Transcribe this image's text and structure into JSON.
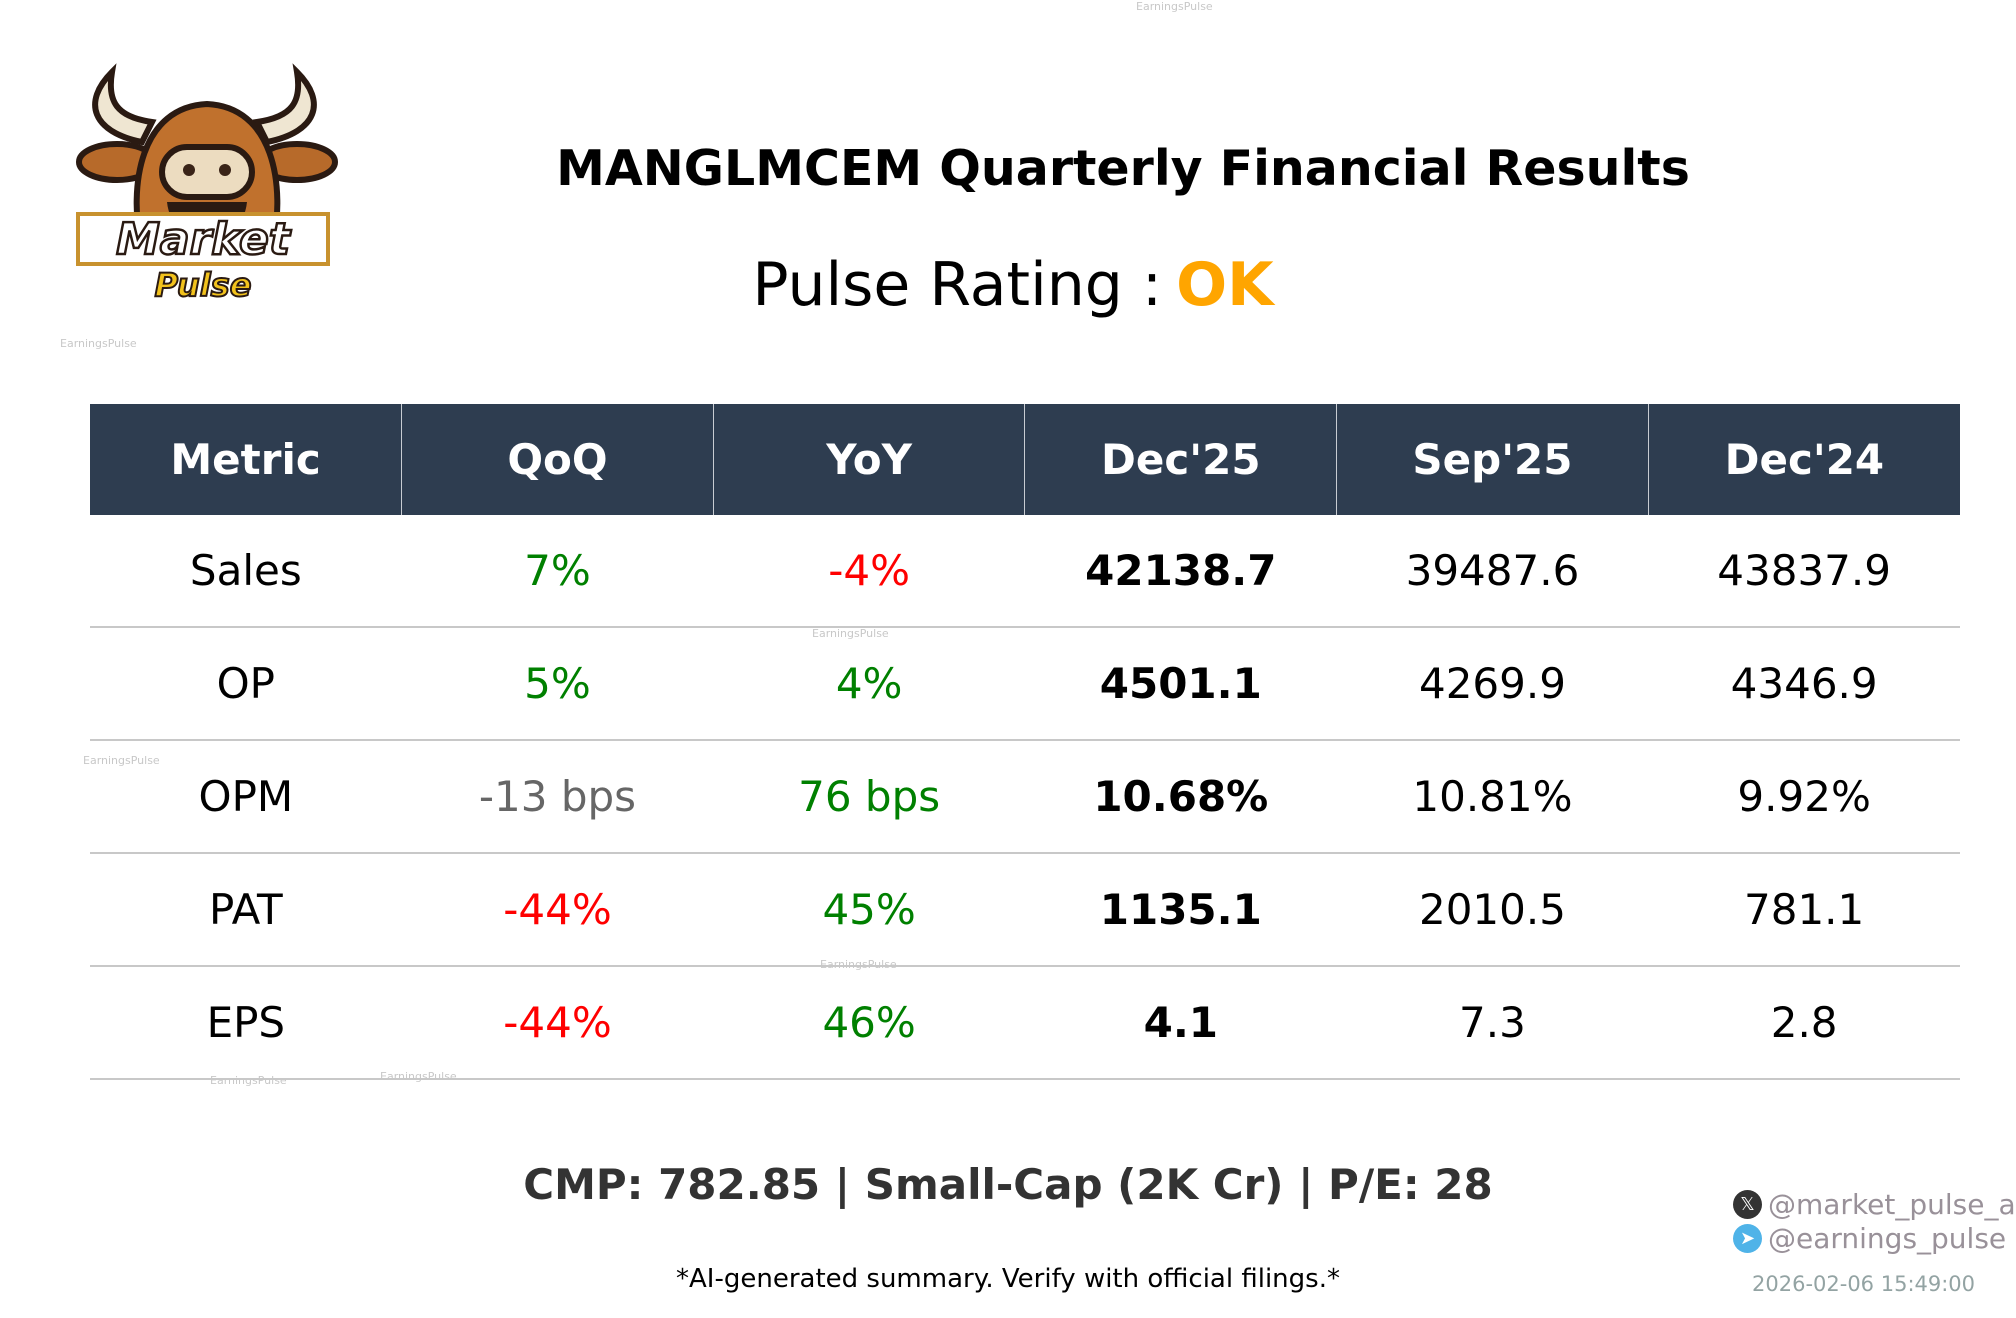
{
  "watermark": "EarningsPulse",
  "logo": {
    "text_top": "Market",
    "text_bottom": "Pulse"
  },
  "title": "MANGLMCEM Quarterly Financial Results",
  "pulse_rating": {
    "label": "Pulse Rating :",
    "value": "OK",
    "color": "#FFA500"
  },
  "table": {
    "headers": [
      "Metric",
      "QoQ",
      "YoY",
      "Dec'25",
      "Sep'25",
      "Dec'24"
    ],
    "rows": [
      {
        "metric": "Sales",
        "qoq": "7%",
        "qoq_color": "#008000",
        "yoy": "-4%",
        "yoy_color": "#ff0000",
        "dec25": "42138.7",
        "sep25": "39487.6",
        "dec24": "43837.9"
      },
      {
        "metric": "OP",
        "qoq": "5%",
        "qoq_color": "#008000",
        "yoy": "4%",
        "yoy_color": "#008000",
        "dec25": "4501.1",
        "sep25": "4269.9",
        "dec24": "4346.9"
      },
      {
        "metric": "OPM",
        "qoq": "-13 bps",
        "qoq_color": "#666666",
        "yoy": "76 bps",
        "yoy_color": "#008000",
        "dec25": "10.68%",
        "sep25": "10.81%",
        "dec24": "9.92%"
      },
      {
        "metric": "PAT",
        "qoq": "-44%",
        "qoq_color": "#ff0000",
        "yoy": "45%",
        "yoy_color": "#008000",
        "dec25": "1135.1",
        "sep25": "2010.5",
        "dec24": "781.1"
      },
      {
        "metric": "EPS",
        "qoq": "-44%",
        "qoq_color": "#ff0000",
        "yoy": "46%",
        "yoy_color": "#008000",
        "dec25": "4.1",
        "sep25": "7.3",
        "dec24": "2.8"
      }
    ]
  },
  "footer": {
    "cmp": "CMP: 782.85 | Small-Cap (2K Cr) | P/E: 28",
    "disclaimer": "*AI-generated summary. Verify with official filings.*",
    "x_handle": "@market_pulse_ai",
    "telegram_handle": "@earnings_pulse",
    "timestamp": "2026-02-06 15:49:00"
  }
}
